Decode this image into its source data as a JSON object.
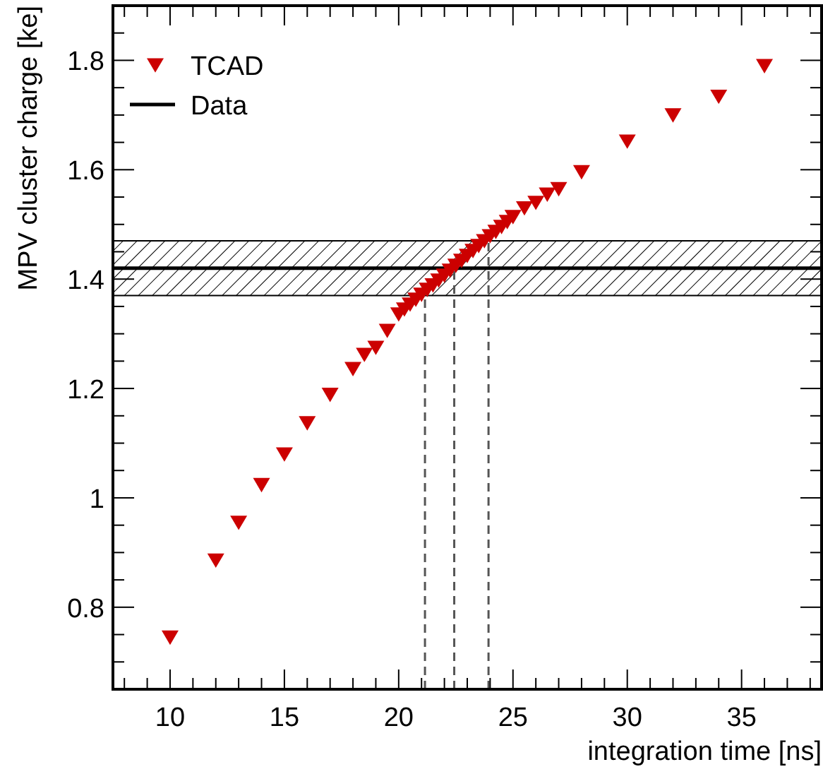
{
  "chart_data": {
    "type": "scatter",
    "xlabel": "integration time [ns]",
    "ylabel": "MPV cluster charge [ke]",
    "xlim": [
      7.5,
      38.5
    ],
    "ylim": [
      0.65,
      1.9
    ],
    "xticks": [
      {
        "value": 8,
        "label": null
      },
      {
        "value": 9,
        "label": null
      },
      10,
      {
        "value": 11,
        "label": null
      },
      {
        "value": 12,
        "label": null
      },
      {
        "value": 13,
        "label": null
      },
      {
        "value": 14,
        "label": null
      },
      15,
      {
        "value": 16,
        "label": null
      },
      {
        "value": 17,
        "label": null
      },
      {
        "value": 18,
        "label": null
      },
      {
        "value": 19,
        "label": null
      },
      20,
      {
        "value": 21,
        "label": null
      },
      {
        "value": 22,
        "label": null
      },
      {
        "value": 23,
        "label": null
      },
      {
        "value": 24,
        "label": null
      },
      25,
      {
        "value": 26,
        "label": null
      },
      {
        "value": 27,
        "label": null
      },
      {
        "value": 28,
        "label": null
      },
      {
        "value": 29,
        "label": null
      },
      30,
      {
        "value": 31,
        "label": null
      },
      {
        "value": 32,
        "label": null
      },
      {
        "value": 33,
        "label": null
      },
      {
        "value": 34,
        "label": null
      },
      35,
      {
        "value": 36,
        "label": null
      },
      {
        "value": 37,
        "label": null
      },
      {
        "value": 38,
        "label": null
      }
    ],
    "yticks": [
      {
        "value": 0.7,
        "label": null
      },
      {
        "value": 0.75,
        "label": null
      },
      0.8,
      {
        "value": 0.85,
        "label": null
      },
      {
        "value": 0.9,
        "label": null
      },
      {
        "value": 0.95,
        "label": null
      },
      1,
      {
        "value": 1.05,
        "label": null
      },
      {
        "value": 1.1,
        "label": null
      },
      {
        "value": 1.15,
        "label": null
      },
      1.2,
      {
        "value": 1.25,
        "label": null
      },
      {
        "value": 1.3,
        "label": null
      },
      {
        "value": 1.35,
        "label": null
      },
      1.4,
      {
        "value": 1.45,
        "label": null
      },
      {
        "value": 1.5,
        "label": null
      },
      {
        "value": 1.55,
        "label": null
      },
      1.6,
      {
        "value": 1.65,
        "label": null
      },
      {
        "value": 1.7,
        "label": null
      },
      {
        "value": 1.75,
        "label": null
      },
      1.8,
      {
        "value": 1.85,
        "label": null
      }
    ],
    "legend": "top left",
    "grid": false,
    "series": [
      {
        "name": "TCAD",
        "marker": "triangle",
        "color": "#cc0000",
        "x": [
          10,
          12,
          13,
          14,
          15,
          16,
          17,
          18,
          18.5,
          19,
          19.5,
          20,
          20.25,
          20.5,
          20.75,
          21,
          21.25,
          21.5,
          21.75,
          22,
          22.25,
          22.5,
          22.75,
          23,
          23.25,
          23.5,
          23.75,
          24,
          24.25,
          24.5,
          24.75,
          25,
          25.5,
          26,
          26.5,
          27,
          28,
          30,
          32,
          34,
          36
        ],
        "values": [
          0.745,
          0.886,
          0.955,
          1.024,
          1.08,
          1.137,
          1.189,
          1.236,
          1.262,
          1.275,
          1.306,
          1.336,
          1.345,
          1.354,
          1.363,
          1.372,
          1.381,
          1.389,
          1.398,
          1.407,
          1.416,
          1.425,
          1.434,
          1.443,
          1.452,
          1.461,
          1.47,
          1.479,
          1.487,
          1.496,
          1.505,
          1.514,
          1.53,
          1.54,
          1.555,
          1.565,
          1.596,
          1.652,
          1.7,
          1.734,
          1.79
        ]
      },
      {
        "name": "Data",
        "type": "line",
        "color": "#000000",
        "line_style": "solid",
        "x": [
          7.5,
          38.5
        ],
        "values": [
          1.42,
          1.42
        ],
        "lower": [
          1.37,
          1.37
        ],
        "upper": [
          1.47,
          1.47
        ]
      },
      {
        "type": "line",
        "color": "#555555",
        "line_style": "dashed",
        "x": [
          21.15,
          21.15
        ],
        "values": [
          0.65,
          1.37
        ]
      },
      {
        "type": "line",
        "color": "#555555",
        "line_style": "dashed",
        "x": [
          22.43,
          22.43
        ],
        "values": [
          0.65,
          1.42
        ]
      },
      {
        "type": "line",
        "color": "#555555",
        "line_style": "dashed",
        "x": [
          23.93,
          23.93
        ],
        "values": [
          0.65,
          1.47
        ]
      }
    ]
  }
}
